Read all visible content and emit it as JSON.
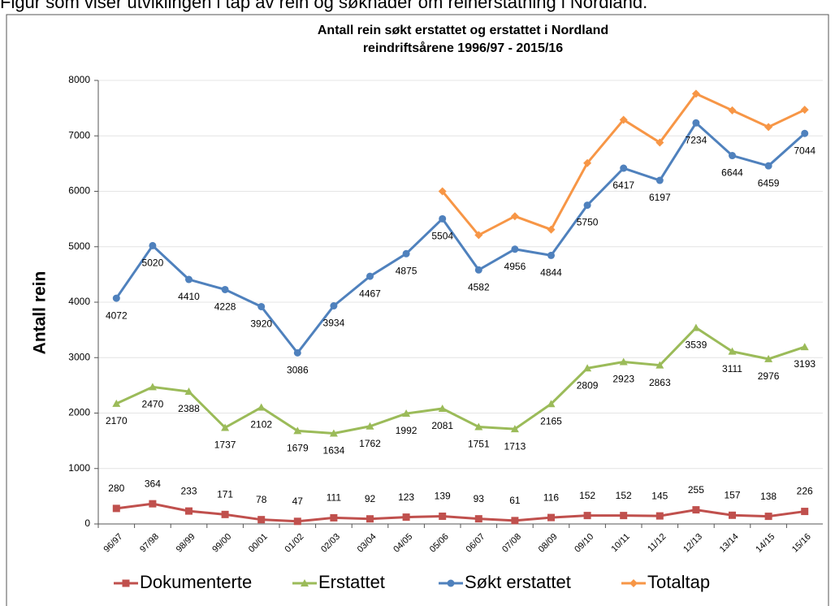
{
  "caption": "Figur som viser utviklingen i tap av rein og søknader om reinerstatning i Nordland.",
  "chart_data": {
    "type": "line",
    "title": "Antall rein søkt erstattet og erstattet  i Nordland",
    "subtitle": "reindriftsårene 1996/97 - 2015/16",
    "y_label": "Antall rein",
    "categories": [
      "96/97",
      "97/98",
      "98/99",
      "99/00",
      "00/01",
      "01/02",
      "02/03",
      "03/04",
      "04/05",
      "05/06",
      "06/07",
      "07/08",
      "08/09",
      "09/10",
      "10/11",
      "11/12",
      "12/13",
      "13/14",
      "14/15",
      "15/16"
    ],
    "series": [
      {
        "name": "Dokumenterte",
        "color": "#c0504d",
        "marker": "square",
        "label_position": "above",
        "values": [
          280,
          364,
          233,
          171,
          78,
          47,
          111,
          92,
          123,
          139,
          93,
          61,
          116,
          152,
          152,
          145,
          255,
          157,
          138,
          226
        ]
      },
      {
        "name": "Erstattet",
        "color": "#9bbb59",
        "marker": "triangle",
        "label_position": "below",
        "values": [
          2170,
          2470,
          2388,
          1737,
          2102,
          1679,
          1634,
          1762,
          1992,
          2081,
          1751,
          1713,
          2165,
          2809,
          2923,
          2863,
          3539,
          3111,
          2976,
          3193
        ]
      },
      {
        "name": "Søkt erstattet",
        "color": "#4f81bd",
        "marker": "circle",
        "label_position": "below",
        "values": [
          4072,
          5020,
          4410,
          4228,
          3920,
          3086,
          3934,
          4467,
          4875,
          5504,
          4582,
          4956,
          4844,
          5750,
          6417,
          6197,
          7234,
          6644,
          6459,
          7044
        ]
      },
      {
        "name": "Totaltap",
        "color": "#f79646",
        "marker": "diamond",
        "label_position": "none",
        "values": [
          null,
          null,
          null,
          null,
          null,
          null,
          null,
          null,
          null,
          6000,
          5210,
          5550,
          5310,
          6510,
          7290,
          6880,
          7760,
          7460,
          7160,
          7470
        ]
      }
    ],
    "ylim": [
      0,
      8000
    ],
    "yticks": [
      0,
      1000,
      2000,
      3000,
      4000,
      5000,
      6000,
      7000,
      8000
    ],
    "grid": true,
    "legend": "bottom"
  }
}
